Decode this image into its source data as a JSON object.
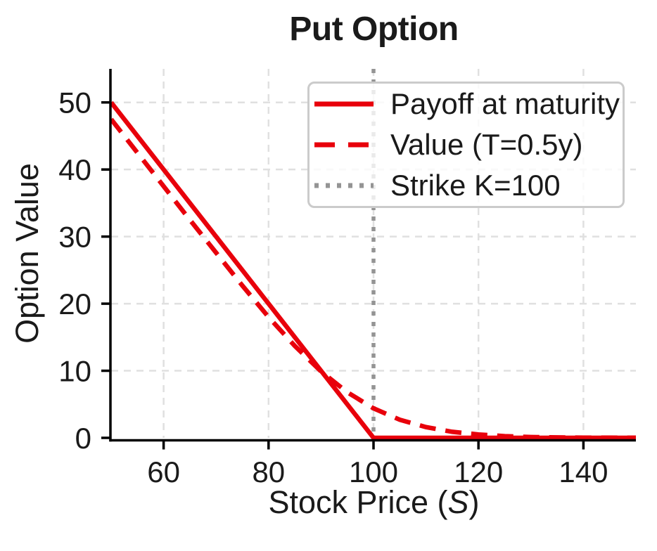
{
  "chart_data": {
    "type": "line",
    "title": "Put Option",
    "xlabel": "Stock Price (S)",
    "xlabel_parts": {
      "prefix": "Stock Price (",
      "variable": "S",
      "suffix": ")"
    },
    "ylabel": "Option Value",
    "xlim": [
      50,
      150
    ],
    "ylim": [
      0,
      55
    ],
    "xticks": [
      60,
      80,
      100,
      120,
      140
    ],
    "yticks": [
      0,
      10,
      20,
      30,
      40,
      50
    ],
    "grid": true,
    "legend_position": "upper right",
    "colors": {
      "line_red": "#e8000b",
      "strike_gray": "#949494",
      "grid": "#e0e0e0",
      "axis": "#000000",
      "text": "#1a1a1a",
      "legend_border": "#cbcbcb"
    },
    "series": [
      {
        "name": "Payoff at maturity",
        "type": "line",
        "style": "solid",
        "color": "#e8000b",
        "x": [
          50,
          100,
          150
        ],
        "y": [
          50,
          0,
          0
        ]
      },
      {
        "name": "Value (T=0.5y)",
        "type": "line",
        "style": "dashed",
        "color": "#e8000b",
        "x": [
          50,
          55,
          60,
          65,
          70,
          75,
          80,
          85,
          90,
          95,
          100,
          105,
          110,
          115,
          120,
          125,
          130,
          135,
          140,
          145,
          150
        ],
        "y": [
          47.5,
          42.5,
          37.5,
          32.5,
          27.6,
          22.7,
          18.0,
          13.7,
          9.9,
          6.8,
          4.4,
          2.7,
          1.6,
          0.9,
          0.5,
          0.25,
          0.12,
          0.06,
          0.03,
          0.02,
          0.01
        ]
      },
      {
        "name": "Strike K=100",
        "type": "vline",
        "style": "dotted",
        "color": "#949494",
        "x": 100
      }
    ]
  }
}
